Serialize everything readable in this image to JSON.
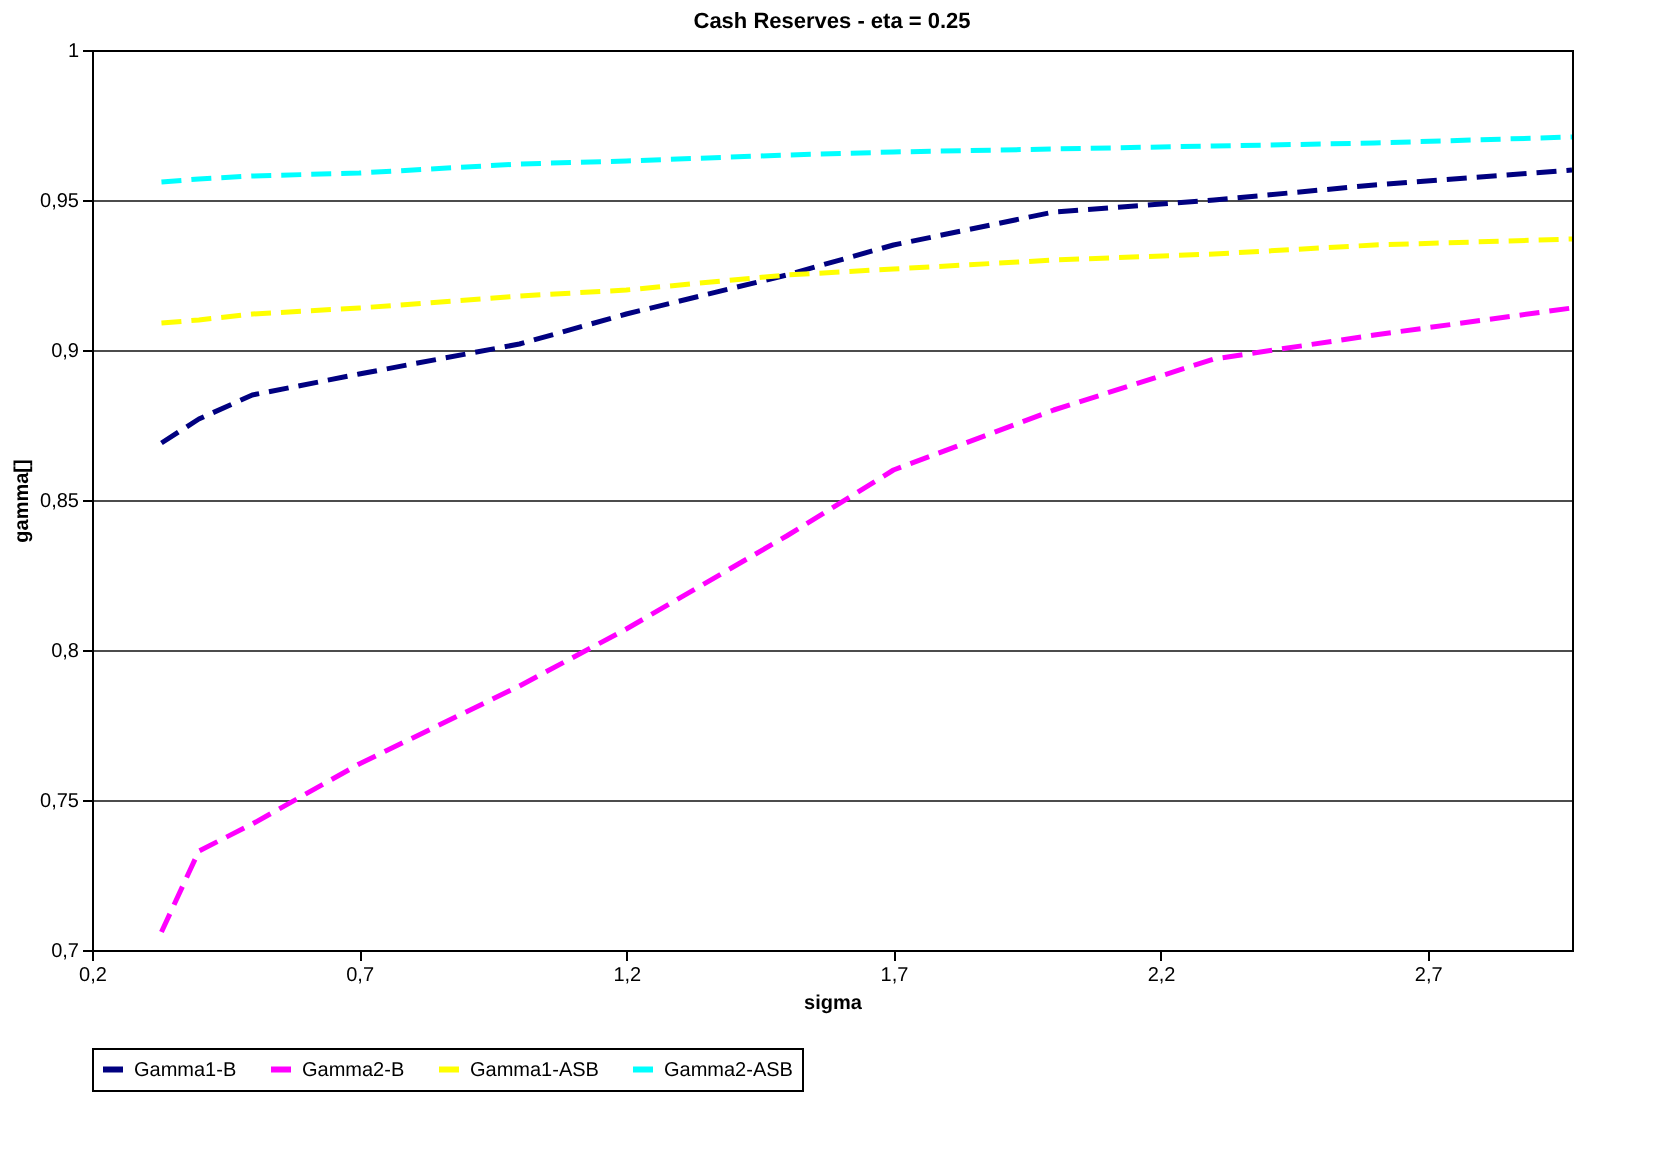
{
  "chart_data": {
    "type": "line",
    "title": "Cash Reserves - eta = 0.25",
    "xlabel": "sigma",
    "ylabel": "gamma[]",
    "x": [
      0.33,
      0.4,
      0.5,
      0.7,
      1.0,
      1.2,
      1.5,
      1.7,
      2.0,
      2.3,
      2.6,
      2.97
    ],
    "series": [
      {
        "name": "Gamma1-B",
        "color": "#000080",
        "values": [
          0.869,
          0.877,
          0.885,
          0.892,
          0.902,
          0.912,
          0.925,
          0.935,
          0.946,
          0.95,
          0.955,
          0.96
        ]
      },
      {
        "name": "Gamma2-B",
        "color": "#ff00ff",
        "values": [
          0.706,
          0.733,
          0.742,
          0.762,
          0.788,
          0.807,
          0.838,
          0.86,
          0.88,
          0.897,
          0.905,
          0.914
        ]
      },
      {
        "name": "Gamma1-ASB",
        "color": "#ffff00",
        "values": [
          0.909,
          0.91,
          0.912,
          0.914,
          0.918,
          0.92,
          0.925,
          0.927,
          0.93,
          0.932,
          0.935,
          0.937
        ]
      },
      {
        "name": "Gamma2-ASB",
        "color": "#00ffff",
        "values": [
          0.956,
          0.957,
          0.958,
          0.959,
          0.962,
          0.963,
          0.965,
          0.966,
          0.967,
          0.968,
          0.969,
          0.971
        ]
      }
    ],
    "xlim": [
      0.2,
      2.97
    ],
    "xticks": [
      {
        "value": 0.2,
        "label": "0,2"
      },
      {
        "value": 0.7,
        "label": "0,7"
      },
      {
        "value": 1.2,
        "label": "1,2"
      },
      {
        "value": 1.7,
        "label": "1,7"
      },
      {
        "value": 2.2,
        "label": "2,2"
      },
      {
        "value": 2.7,
        "label": "2,7"
      }
    ],
    "ylim": [
      0.7,
      1
    ],
    "yticks": [
      {
        "value": 0.7,
        "label": "0,7"
      },
      {
        "value": 0.75,
        "label": "0,75"
      },
      {
        "value": 0.8,
        "label": "0,8"
      },
      {
        "value": 0.85,
        "label": "0,85"
      },
      {
        "value": 0.9,
        "label": "0,9"
      },
      {
        "value": 0.95,
        "label": "0,95"
      },
      1
    ],
    "grid": "y",
    "legend": "bottom",
    "line_style": "dashed",
    "marker": "none"
  }
}
